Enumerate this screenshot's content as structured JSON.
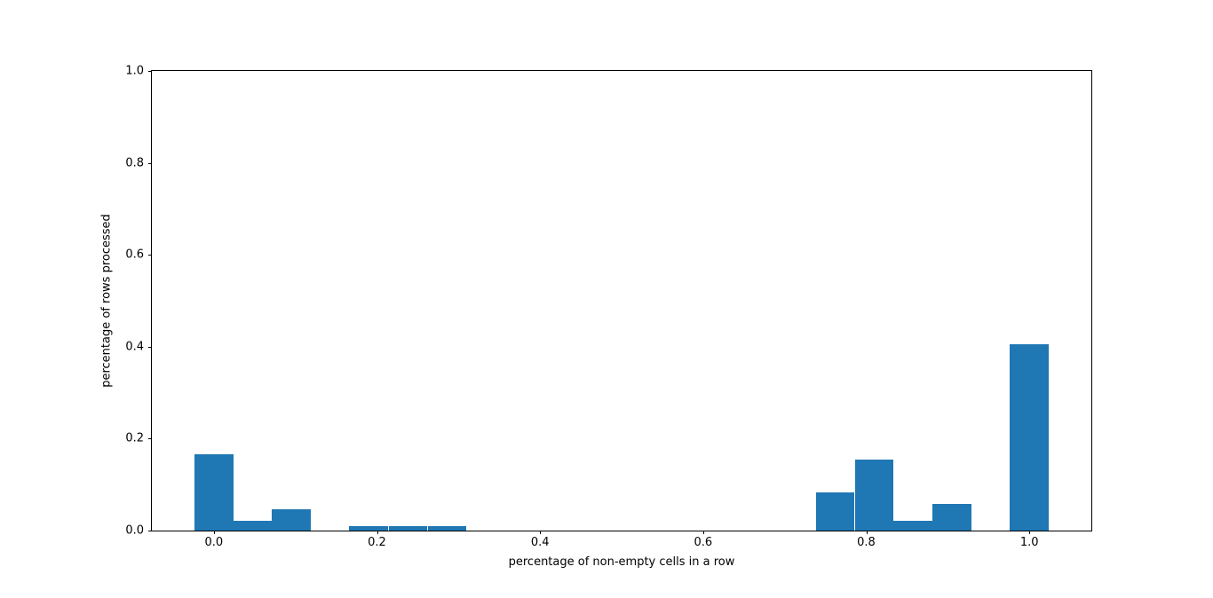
{
  "figure": {
    "background": "#ffffff"
  },
  "chart_data": {
    "type": "bar",
    "subtype": "histogram",
    "title": "",
    "xlabel": "percentage of non-empty cells in a row",
    "ylabel": "percentage of rows processed",
    "xlim": [
      -0.076,
      1.076
    ],
    "ylim": [
      0.0,
      1.0
    ],
    "x_ticks": [
      0.0,
      0.2,
      0.4,
      0.6,
      0.8,
      1.0
    ],
    "x_tick_labels": [
      "0.0",
      "0.2",
      "0.4",
      "0.6",
      "0.8",
      "1.0"
    ],
    "y_ticks": [
      0.0,
      0.2,
      0.4,
      0.6,
      0.8,
      1.0
    ],
    "y_tick_labels": [
      "0.0",
      "0.2",
      "0.4",
      "0.6",
      "0.8",
      "1.0"
    ],
    "bar_color": "#1f77b4",
    "bin_width": 0.0476,
    "grid": false,
    "bars": [
      {
        "center": 0.0,
        "height": 0.167
      },
      {
        "center": 0.048,
        "height": 0.021
      },
      {
        "center": 0.095,
        "height": 0.047
      },
      {
        "center": 0.19,
        "height": 0.01
      },
      {
        "center": 0.238,
        "height": 0.01
      },
      {
        "center": 0.286,
        "height": 0.01
      },
      {
        "center": 0.762,
        "height": 0.084
      },
      {
        "center": 0.81,
        "height": 0.154
      },
      {
        "center": 0.857,
        "height": 0.022
      },
      {
        "center": 0.905,
        "height": 0.058
      },
      {
        "center": 1.0,
        "height": 0.405
      }
    ]
  }
}
